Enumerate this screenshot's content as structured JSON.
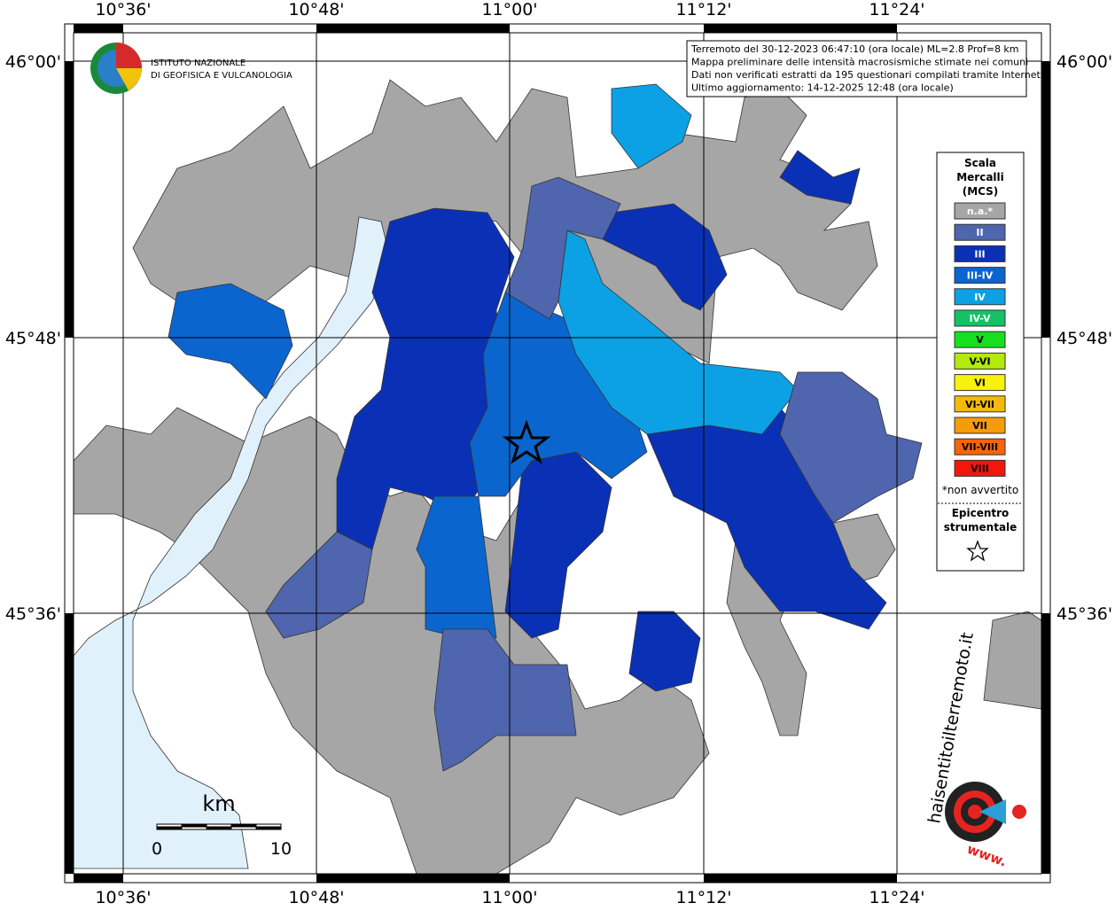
{
  "map": {
    "x_labels": [
      "10°36'",
      "10°48'",
      "11°00'",
      "11°12'",
      "11°24'"
    ],
    "y_labels": [
      "46°00'",
      "45°48'",
      "45°36'"
    ],
    "institute": [
      "ISTITUTO NAZIONALE",
      "DI GEOFISICA E VULCANOLOGIA"
    ],
    "info": [
      "Terremoto del 30-12-2023 06:47:10 (ora locale) ML=2.8 Prof=8 km",
      "Mappa preliminare delle intensità macrosismiche stimate nei comuni",
      "Dati non verificati estratti da 195 questionari compilati tramite Internet.",
      "Ultimo aggiornamento: 14-12-2025 12:48 (ora locale)"
    ],
    "legend": {
      "title": [
        "Scala",
        "Mercalli",
        "(MCS)"
      ],
      "items": [
        {
          "label": "n.a.*",
          "color": "#a6a6a6"
        },
        {
          "label": "II",
          "color": "#4f65ad"
        },
        {
          "label": "III",
          "color": "#0a31b5"
        },
        {
          "label": "III-IV",
          "color": "#0b65cf"
        },
        {
          "label": "IV",
          "color": "#0ca1e4"
        },
        {
          "label": "IV-V",
          "color": "#13c264"
        },
        {
          "label": "V",
          "color": "#16e01e"
        },
        {
          "label": "V-VI",
          "color": "#b3e90f"
        },
        {
          "label": "VI",
          "color": "#f6f20d"
        },
        {
          "label": "VI-VII",
          "color": "#f6b90b"
        },
        {
          "label": "VII",
          "color": "#f69b0a"
        },
        {
          "label": "VII-VIII",
          "color": "#f7640a"
        },
        {
          "label": "VIII",
          "color": "#f2160d"
        }
      ],
      "note": "*non avvertito",
      "epicenter": [
        "Epicentro",
        "strumentale"
      ]
    },
    "scale": {
      "unit": "km",
      "ticks": [
        "0",
        "10"
      ]
    },
    "site": "haisentitoilterremoto.it",
    "site_prefix": "www."
  }
}
